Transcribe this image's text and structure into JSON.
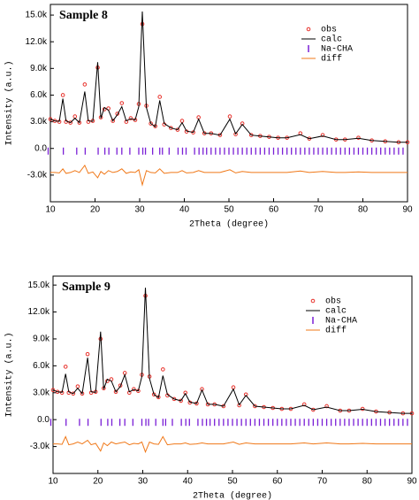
{
  "chart_data": [
    {
      "type": "line",
      "annotation": "Sample 8",
      "xlabel": "2Theta (degree)",
      "ylabel": "Intensity (a.u.)",
      "legend": "upper right",
      "xlim": [
        10,
        90
      ],
      "xticks": [
        10,
        20,
        30,
        40,
        50,
        60,
        70,
        80,
        90
      ],
      "ylim": [
        -6000,
        16200
      ],
      "yticks": [
        {
          "value": -3000,
          "label": "-3.0k"
        },
        {
          "value": 0,
          "label": "0.0"
        },
        {
          "value": 3000,
          "label": "3.0k"
        },
        {
          "value": 6000,
          "label": "6.0k"
        },
        {
          "value": 9000,
          "label": "9.0k"
        },
        {
          "value": 12000,
          "label": "12.0k"
        },
        {
          "value": 15000,
          "label": "15.0k"
        }
      ],
      "x": [
        10,
        11,
        12,
        12.8,
        13.5,
        14.5,
        15.5,
        16.5,
        17.7,
        18.5,
        19.5,
        20.6,
        21.3,
        22.1,
        23,
        24,
        25,
        26,
        27,
        28,
        29,
        29.8,
        30.6,
        31.5,
        32.5,
        33.5,
        34.5,
        35.5,
        37,
        38.5,
        39.5,
        40.5,
        42,
        43.2,
        44.5,
        46,
        48,
        50.2,
        51.5,
        53,
        55,
        57,
        59,
        61,
        63,
        66,
        68,
        71,
        74,
        76,
        79,
        82,
        85,
        88,
        90
      ],
      "series": [
        {
          "name": "obs",
          "color": "#e8302a",
          "values": [
            3300,
            3100,
            3000,
            6000,
            3000,
            2900,
            3600,
            2900,
            7200,
            3000,
            3100,
            9100,
            3500,
            4400,
            4500,
            3100,
            3900,
            5100,
            3000,
            3400,
            3200,
            5000,
            14000,
            4800,
            2800,
            2500,
            5800,
            2700,
            2300,
            2100,
            3100,
            1900,
            1800,
            3500,
            1700,
            1700,
            1500,
            3600,
            1600,
            2800,
            1500,
            1400,
            1300,
            1200,
            1200,
            1700,
            1100,
            1500,
            1000,
            1000,
            1200,
            900,
            800,
            700,
            700
          ]
        },
        {
          "name": "calc",
          "color": "#000000",
          "values": [
            3300,
            3100,
            3050,
            5600,
            3100,
            2900,
            3400,
            2900,
            6400,
            3100,
            3050,
            9700,
            3400,
            4600,
            4300,
            3100,
            3800,
            4700,
            3100,
            3350,
            3200,
            4700,
            15400,
            4600,
            2800,
            2450,
            5400,
            2800,
            2300,
            2100,
            2900,
            1950,
            1800,
            3300,
            1700,
            1700,
            1500,
            3300,
            1650,
            2700,
            1500,
            1400,
            1300,
            1200,
            1200,
            1550,
            1100,
            1400,
            1000,
            1000,
            1150,
            900,
            800,
            700,
            700
          ]
        },
        {
          "name": "Na-CHA",
          "color": "#7a1fd6",
          "x": [
            9.5,
            12.9,
            15.9,
            17.8,
            20.7,
            22.2,
            23.1,
            24.9,
            26.0,
            27.8,
            29.8,
            30.7,
            31.3,
            32.9,
            34.5,
            35.1,
            36.6,
            38.6,
            39.6,
            40.4,
            42.3,
            43.3,
            44.2,
            45,
            46,
            47,
            48,
            49,
            50,
            51,
            52,
            53,
            54,
            55,
            56,
            57,
            58,
            59,
            60,
            61,
            62,
            63,
            64,
            65,
            66,
            67,
            68,
            69,
            70,
            71,
            72,
            73,
            74,
            75,
            76,
            77,
            78,
            79,
            80,
            81,
            82,
            83,
            84,
            85,
            86,
            87,
            88,
            89
          ],
          "values": [
            -300,
            -300,
            -300,
            -300,
            -300,
            -300,
            -300,
            -300,
            -300,
            -300,
            -300,
            -300,
            -300,
            -300,
            -300,
            -300,
            -300,
            -300,
            -300,
            -300,
            -300,
            -300,
            -300,
            -300,
            -300,
            -300,
            -300,
            -300,
            -300,
            -300,
            -300,
            -300,
            -300,
            -300,
            -300,
            -300,
            -300,
            -300,
            -300,
            -300,
            -300,
            -300,
            -300,
            -300,
            -300,
            -300,
            -300,
            -300,
            -300,
            -300,
            -300,
            -300,
            -300,
            -300,
            -300,
            -300,
            -300,
            -300,
            -300,
            -300,
            -300,
            -300,
            -300,
            -300,
            -300,
            -300,
            -300,
            -300
          ]
        },
        {
          "name": "diff",
          "color": "#f07818",
          "values": [
            -2700,
            -2700,
            -2750,
            -2300,
            -2800,
            -2700,
            -2500,
            -2700,
            -1900,
            -2800,
            -2650,
            -3300,
            -2600,
            -2900,
            -2500,
            -2700,
            -2600,
            -2300,
            -2800,
            -2650,
            -2700,
            -2400,
            -4100,
            -2500,
            -2700,
            -2750,
            -2300,
            -2800,
            -2700,
            -2700,
            -2500,
            -2750,
            -2700,
            -2500,
            -2700,
            -2700,
            -2700,
            -2400,
            -2750,
            -2600,
            -2700,
            -2700,
            -2700,
            -2700,
            -2700,
            -2550,
            -2700,
            -2600,
            -2700,
            -2700,
            -2650,
            -2700,
            -2700,
            -2700,
            -2700
          ]
        }
      ]
    },
    {
      "type": "line",
      "annotation": "Sample 9",
      "xlabel": "2Theta (degree)",
      "ylabel": "Intensity (a.u.)",
      "legend": "upper right",
      "xlim": [
        10,
        90
      ],
      "xticks": [
        10,
        20,
        30,
        40,
        50,
        60,
        70,
        80,
        90
      ],
      "ylim": [
        -6000,
        16000
      ],
      "yticks": [
        {
          "value": -3000,
          "label": "-3.0k"
        },
        {
          "value": 0,
          "label": "0.0"
        },
        {
          "value": 3000,
          "label": "3.0k"
        },
        {
          "value": 6000,
          "label": "6.0k"
        },
        {
          "value": 9000,
          "label": "9.0k"
        },
        {
          "value": 12000,
          "label": "12.0k"
        },
        {
          "value": 15000,
          "label": "15.0k"
        }
      ],
      "x": [
        10,
        11,
        12,
        12.8,
        13.5,
        14.5,
        15.5,
        16.5,
        17.7,
        18.5,
        19.5,
        20.6,
        21.3,
        22.1,
        23,
        24,
        25,
        26,
        27,
        28,
        29,
        29.8,
        30.6,
        31.5,
        32.5,
        33.5,
        34.5,
        35.5,
        37,
        38.5,
        39.5,
        40.5,
        42,
        43.2,
        44.5,
        46,
        48,
        50.2,
        51.5,
        53,
        55,
        57,
        59,
        61,
        63,
        66,
        68,
        71,
        74,
        76,
        79,
        82,
        85,
        88,
        90
      ],
      "series": [
        {
          "name": "obs",
          "color": "#e8302a",
          "values": [
            3300,
            3100,
            3000,
            5900,
            3000,
            2900,
            3700,
            2900,
            7300,
            3000,
            3100,
            9000,
            3500,
            4300,
            4500,
            3100,
            3800,
            5200,
            3000,
            3400,
            3200,
            5000,
            13800,
            4800,
            2800,
            2500,
            5600,
            2700,
            2300,
            2100,
            3000,
            1900,
            1800,
            3400,
            1700,
            1700,
            1500,
            3600,
            1600,
            2800,
            1500,
            1400,
            1300,
            1200,
            1200,
            1700,
            1100,
            1500,
            1000,
            1000,
            1200,
            900,
            800,
            700,
            700
          ]
        },
        {
          "name": "calc",
          "color": "#000000",
          "values": [
            3300,
            3100,
            3050,
            5100,
            3100,
            2900,
            3500,
            2900,
            6900,
            3100,
            3050,
            9800,
            3400,
            4500,
            4300,
            3100,
            3700,
            5000,
            3100,
            3350,
            3200,
            4800,
            14700,
            4600,
            2800,
            2450,
            4900,
            2800,
            2300,
            2100,
            2900,
            1950,
            1800,
            3300,
            1700,
            1700,
            1500,
            3400,
            1650,
            2700,
            1500,
            1400,
            1300,
            1200,
            1200,
            1600,
            1100,
            1400,
            1000,
            1000,
            1150,
            900,
            800,
            700,
            700
          ]
        },
        {
          "name": "Na-CHA",
          "color": "#7a1fd6",
          "x": [
            9.5,
            12.9,
            15.9,
            17.8,
            20.7,
            22.2,
            23.1,
            24.9,
            26.0,
            27.8,
            29.8,
            30.7,
            31.3,
            32.9,
            34.5,
            35.1,
            36.6,
            38.6,
            39.6,
            40.4,
            42.3,
            43.3,
            44.2,
            45,
            46,
            47,
            48,
            49,
            50,
            51,
            52,
            53,
            54,
            55,
            56,
            57,
            58,
            59,
            60,
            61,
            62,
            63,
            64,
            65,
            66,
            67,
            68,
            69,
            70,
            71,
            72,
            73,
            74,
            75,
            76,
            77,
            78,
            79,
            80,
            81,
            82,
            83,
            84,
            85,
            86,
            87,
            88,
            89
          ],
          "values": [
            -300,
            -300,
            -300,
            -300,
            -300,
            -300,
            -300,
            -300,
            -300,
            -300,
            -300,
            -300,
            -300,
            -300,
            -300,
            -300,
            -300,
            -300,
            -300,
            -300,
            -300,
            -300,
            -300,
            -300,
            -300,
            -300,
            -300,
            -300,
            -300,
            -300,
            -300,
            -300,
            -300,
            -300,
            -300,
            -300,
            -300,
            -300,
            -300,
            -300,
            -300,
            -300,
            -300,
            -300,
            -300,
            -300,
            -300,
            -300,
            -300,
            -300,
            -300,
            -300,
            -300,
            -300,
            -300,
            -300,
            -300,
            -300,
            -300,
            -300,
            -300,
            -300,
            -300,
            -300,
            -300,
            -300,
            -300,
            -300
          ]
        },
        {
          "name": "diff",
          "color": "#f07818",
          "values": [
            -2700,
            -2700,
            -2750,
            -1900,
            -2800,
            -2700,
            -2500,
            -2700,
            -2300,
            -2800,
            -2650,
            -3500,
            -2600,
            -2900,
            -2500,
            -2700,
            -2600,
            -2500,
            -2800,
            -2650,
            -2700,
            -2500,
            -3600,
            -2500,
            -2700,
            -2750,
            -1900,
            -2800,
            -2700,
            -2700,
            -2600,
            -2750,
            -2700,
            -2600,
            -2700,
            -2700,
            -2700,
            -2500,
            -2750,
            -2600,
            -2700,
            -2700,
            -2700,
            -2700,
            -2700,
            -2600,
            -2700,
            -2600,
            -2700,
            -2700,
            -2650,
            -2700,
            -2700,
            -2700,
            -2700
          ]
        }
      ]
    }
  ]
}
